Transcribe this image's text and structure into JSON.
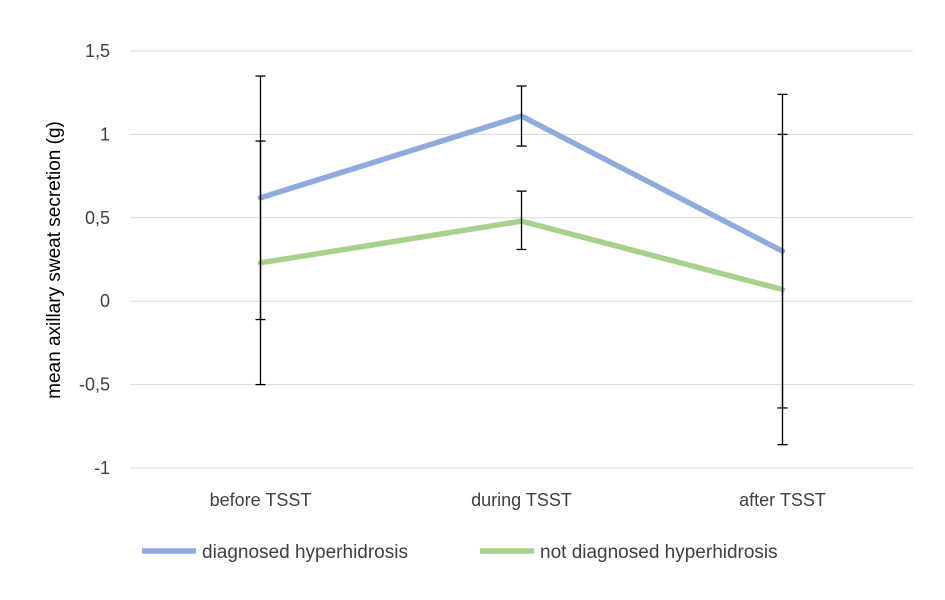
{
  "chart_data": {
    "type": "line",
    "title": "",
    "xlabel": "",
    "ylabel": "mean axillary sweat secretion (g)",
    "categories": [
      "before TSST",
      "during TSST",
      "after TSST"
    ],
    "ylim": [
      -1,
      1.5
    ],
    "yticks": [
      {
        "value": 1.5,
        "label": "1,5"
      },
      {
        "value": 1,
        "label": "1"
      },
      {
        "value": 0.5,
        "label": "0,5"
      },
      {
        "value": 0,
        "label": "0"
      },
      {
        "value": -0.5,
        "label": "-0,5"
      },
      {
        "value": -1,
        "label": "-1"
      }
    ],
    "grid": "horizontal",
    "legend_position": "bottom",
    "series": [
      {
        "name": "diagnosed hyperhidrosis",
        "color": "#8faadc",
        "values": [
          0.62,
          1.11,
          0.3
        ],
        "error_low": [
          -0.11,
          0.93,
          -0.64
        ],
        "error_high": [
          1.35,
          1.29,
          1.24
        ]
      },
      {
        "name": "not diagnosed hyperhidrosis",
        "color": "#a9d18e",
        "values": [
          0.23,
          0.48,
          0.07
        ],
        "error_low": [
          -0.5,
          0.31,
          -0.86
        ],
        "error_high": [
          0.96,
          0.66,
          1.0
        ]
      }
    ]
  }
}
